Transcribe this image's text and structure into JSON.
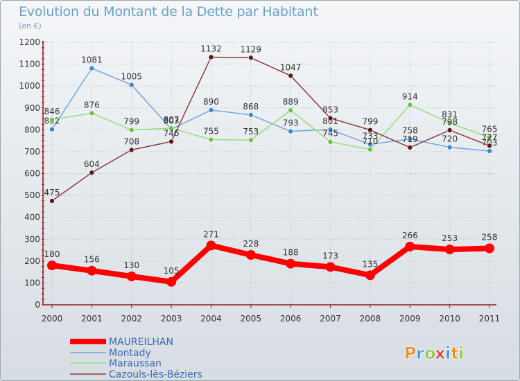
{
  "header": {
    "title": "Evolution du Montant de la Dette par Habitant",
    "unit": "(en €)"
  },
  "logo": {
    "text": "Proxiti",
    "letters": [
      "P",
      "r",
      "o",
      "x",
      "i",
      "t",
      "i"
    ],
    "colors": [
      "#f08a1a",
      "#3a9ad9",
      "#8cc63f",
      "#e53b3b",
      "#3a9ad9",
      "#f08a1a",
      "#8cc63f"
    ]
  },
  "chart_data": {
    "type": "line",
    "title": "Evolution du Montant de la Dette par Habitant",
    "subtitle": "(en €)",
    "x": [
      "2000",
      "2001",
      "2002",
      "2003",
      "2004",
      "2005",
      "2006",
      "2007",
      "2008",
      "2009",
      "2010",
      "2011"
    ],
    "ylim": [
      0,
      1200
    ],
    "yticks": [
      0,
      100,
      200,
      300,
      400,
      500,
      600,
      700,
      800,
      900,
      1000,
      1100,
      1200
    ],
    "grid": true,
    "legend_position": "bottom-left",
    "series": [
      {
        "name": "MAUREILHAN",
        "color": "#ff0000",
        "emphasis": true,
        "values": [
          180,
          156,
          130,
          105,
          271,
          228,
          188,
          173,
          135,
          266,
          253,
          258
        ],
        "labels": [
          "180",
          "156",
          "130",
          "105",
          "271",
          "228",
          "188",
          "173",
          "135",
          "266",
          "253",
          "258"
        ]
      },
      {
        "name": "Montady",
        "color": "#6fa8dc",
        "marker": "#3f88c5",
        "values": [
          802,
          1081,
          1005,
          803,
          890,
          868,
          793,
          801,
          733,
          758,
          720,
          703
        ],
        "labels": [
          "802",
          "1081",
          "1005",
          "803",
          "890",
          "868",
          "793",
          "801",
          "733",
          "758",
          "720",
          "703"
        ]
      },
      {
        "name": "Maraussan",
        "color": "#92e07a",
        "marker": "#6cc04a",
        "values": [
          846,
          876,
          799,
          807,
          755,
          753,
          889,
          745,
          710,
          914,
          831,
          765
        ],
        "labels": [
          "846",
          "876",
          "799",
          "807",
          "755",
          "753",
          "889",
          "745",
          "710",
          "914",
          "831",
          "765"
        ]
      },
      {
        "name": "Cazouls-lès-Béziers",
        "color": "#8b3a3a",
        "marker": "#5a1a1a",
        "values": [
          475,
          604,
          708,
          746,
          1132,
          1129,
          1047,
          853,
          799,
          719,
          798,
          727
        ],
        "labels": [
          "475",
          "604",
          "708",
          "746",
          "1132",
          "1129",
          "1047",
          "853",
          "799",
          "719",
          "798",
          "727"
        ]
      }
    ]
  }
}
